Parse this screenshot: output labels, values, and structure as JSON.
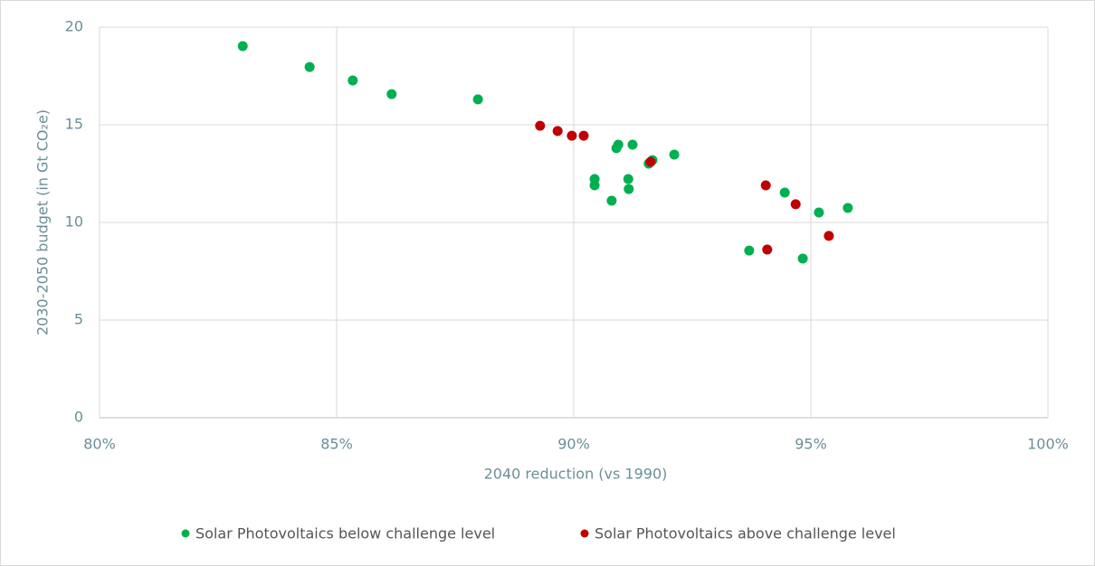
{
  "chart_data": {
    "type": "scatter",
    "x_label": "2040 reduction (vs 1990)",
    "y_label": "2030-2050 budget (in Gt CO₂e)",
    "xlim": [
      80,
      100
    ],
    "xticks": [
      {
        "value": 80,
        "label": "80%"
      },
      {
        "value": 85,
        "label": "85%"
      },
      {
        "value": 90,
        "label": "90%"
      },
      {
        "value": 95,
        "label": "95%"
      },
      {
        "value": 100,
        "label": "100%"
      }
    ],
    "ylim": [
      0,
      20
    ],
    "yticks": [
      0,
      5,
      10,
      15,
      20
    ],
    "grid": true,
    "legend": "bottom",
    "series": [
      {
        "name": "Solar Photovoltaics below challenge level",
        "color": "#00b050",
        "x": [
          83.02,
          84.43,
          85.34,
          86.16,
          87.98,
          90.94,
          90.9,
          91.24,
          92.12,
          91.66,
          91.58,
          90.44,
          90.44,
          91.15,
          91.16,
          90.8,
          94.45,
          95.17,
          95.78,
          93.7,
          94.83
        ],
        "values": [
          19.03,
          17.96,
          17.27,
          16.57,
          16.3,
          13.98,
          13.8,
          13.98,
          13.47,
          13.19,
          13.01,
          12.22,
          11.9,
          12.22,
          11.71,
          11.11,
          11.53,
          10.51,
          10.74,
          8.56,
          8.15
        ]
      },
      {
        "name": "Solar Photovoltaics above challenge level",
        "color": "#c00000",
        "x": [
          89.29,
          89.66,
          89.96,
          90.21,
          91.62,
          94.05,
          94.68,
          94.08,
          95.38
        ],
        "values": [
          14.95,
          14.68,
          14.44,
          14.44,
          13.1,
          11.9,
          10.93,
          8.61,
          9.31
        ]
      }
    ]
  }
}
